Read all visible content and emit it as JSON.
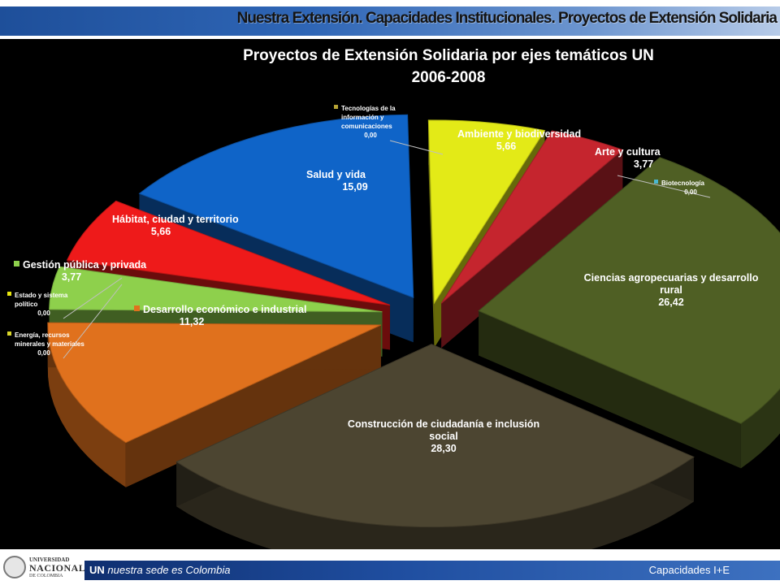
{
  "header": {
    "title": "Nuestra Extensión. Capacidades Institucionales. Proyectos de Extensión Solidaria"
  },
  "footer": {
    "un": "UN",
    "tagline": "nuestra sede es Colombia",
    "right": "Capacidades I+E"
  },
  "logo": {
    "line1": "UNIVERSIDAD",
    "line2": "NACIONAL",
    "line3": "DE COLOMBIA"
  },
  "colors": {
    "header_bar": "#2f66b6",
    "footer_bar": "#1f4ea0",
    "background": "#000000"
  },
  "chart_data": {
    "type": "pie",
    "title": "Proyectos de Extensión Solidaria por ejes temáticos UN",
    "subtitle": "2006-2008",
    "slices": [
      {
        "label": "Tecnologías de la información y comunicaciones",
        "value_label": "0,00",
        "value": 0.0,
        "color": "#b7a435"
      },
      {
        "label": "Ambiente y biodiversidad",
        "value_label": "5,66",
        "value": 5.66,
        "color": "#e3ea17"
      },
      {
        "label": "Arte y cultura",
        "value_label": "3,77",
        "value": 3.77,
        "color": "#c5252e"
      },
      {
        "label": "Biotecnología",
        "value_label": "0,00",
        "value": 0.0,
        "color": "#4ab7d0"
      },
      {
        "label": "Ciencias agropecuarias y desarrollo rural",
        "value_label": "26,42",
        "value": 26.42,
        "color": "#4f5f24"
      },
      {
        "label": "Construcción de ciudadanía e inclusión social",
        "value_label": "28,30",
        "value": 28.3,
        "color": "#4c4531"
      },
      {
        "label": "Energía, recursos minerales y materiales",
        "value_label": "0,00",
        "value": 0.0,
        "color": "#d9d62a"
      },
      {
        "label": "Desarrollo económico e industrial",
        "value_label": "11,32",
        "value": 11.32,
        "color": "#e0711d"
      },
      {
        "label": "Estado y sistema político",
        "value_label": "0,00",
        "value": 0.0,
        "color": "#e8e60f"
      },
      {
        "label": "Gestión pública y privada",
        "value_label": "3,77",
        "value": 3.77,
        "color": "#8ed04c"
      },
      {
        "label": "Hábitat, ciudad y territorio",
        "value_label": "5,66",
        "value": 5.66,
        "color": "#ee1a1a"
      },
      {
        "label": "Salud y vida",
        "value_label": "15,09",
        "value": 15.09,
        "color": "#0f64c8"
      }
    ]
  }
}
